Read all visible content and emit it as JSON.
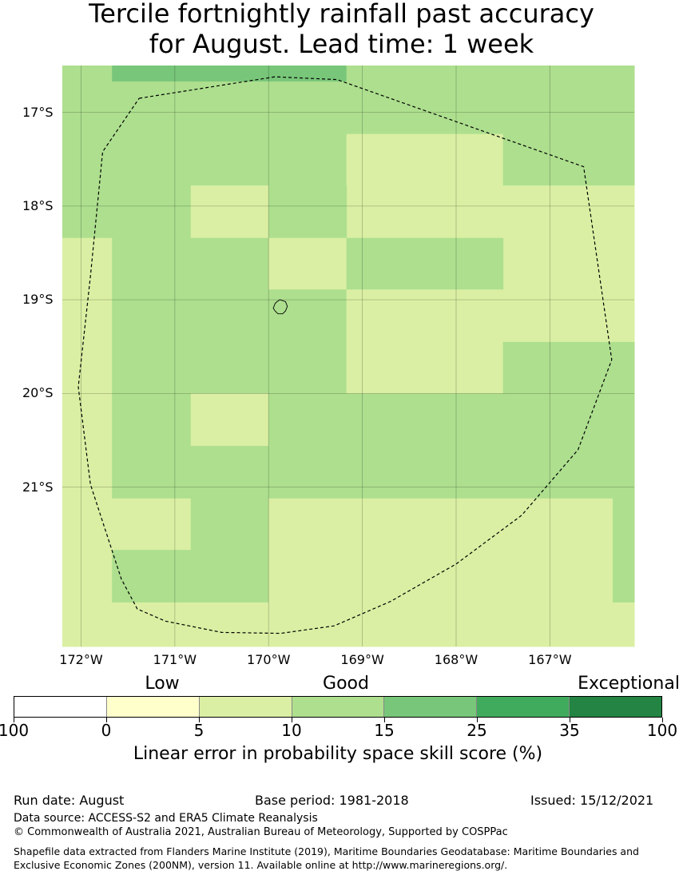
{
  "title": {
    "line1": "Tercile fortnightly rainfall past accuracy",
    "line2": "for August. Lead time: 1 week"
  },
  "map": {
    "lon_range": [
      -172.2,
      -166.1
    ],
    "lat_range": [
      -16.5,
      -22.7
    ],
    "grid_lons": [
      -172,
      -171,
      -170,
      -169,
      -168,
      -167
    ],
    "grid_lats": [
      -17,
      -18,
      -19,
      -20,
      -21
    ],
    "lon_labels": [
      "172°W",
      "171°W",
      "170°W",
      "169°W",
      "168°W",
      "167°W"
    ],
    "lat_labels": [
      "17°S",
      "18°S",
      "19°S",
      "20°S",
      "21°S"
    ],
    "cell_colors": {
      "c10": "#daefa3",
      "c15": "#addf8e",
      "c25": "#78c679"
    },
    "cells": [
      {
        "lon0": -172.2,
        "lon1": -171.67,
        "lat0": -16.5,
        "lat1": -18.34,
        "cls": "c15"
      },
      {
        "lon0": -171.67,
        "lon1": -169.17,
        "lat0": -16.5,
        "lat1": -16.67,
        "cls": "c25"
      },
      {
        "lon0": -169.17,
        "lon1": -166.1,
        "lat0": -16.5,
        "lat1": -17.23,
        "cls": "c15"
      },
      {
        "lon0": -171.67,
        "lon1": -169.17,
        "lat0": -16.67,
        "lat1": -17.78,
        "cls": "c15"
      },
      {
        "lon0": -169.17,
        "lon1": -167.5,
        "lat0": -17.23,
        "lat1": -18.34,
        "cls": "c10"
      },
      {
        "lon0": -167.5,
        "lon1": -166.1,
        "lat0": -17.23,
        "lat1": -17.78,
        "cls": "c15"
      },
      {
        "lon0": -171.67,
        "lon1": -170.83,
        "lat0": -17.78,
        "lat1": -18.34,
        "cls": "c15"
      },
      {
        "lon0": -170.83,
        "lon1": -170.0,
        "lat0": -17.78,
        "lat1": -18.34,
        "cls": "c10"
      },
      {
        "lon0": -170.0,
        "lon1": -169.17,
        "lat0": -17.78,
        "lat1": -18.34,
        "cls": "c15"
      },
      {
        "lon0": -167.5,
        "lon1": -166.1,
        "lat0": -17.78,
        "lat1": -19.45,
        "cls": "c10"
      },
      {
        "lon0": -172.2,
        "lon1": -171.67,
        "lat0": -18.34,
        "lat1": -22.7,
        "cls": "c10"
      },
      {
        "lon0": -171.67,
        "lon1": -170.0,
        "lat0": -18.34,
        "lat1": -20.0,
        "cls": "c15"
      },
      {
        "lon0": -170.0,
        "lon1": -169.17,
        "lat0": -18.34,
        "lat1": -18.89,
        "cls": "c10"
      },
      {
        "lon0": -169.17,
        "lon1": -167.5,
        "lat0": -18.34,
        "lat1": -18.89,
        "cls": "c15"
      },
      {
        "lon0": -170.0,
        "lon1": -169.17,
        "lat0": -18.89,
        "lat1": -20.0,
        "cls": "c15"
      },
      {
        "lon0": -169.17,
        "lon1": -167.5,
        "lat0": -18.89,
        "lat1": -20.0,
        "cls": "c10"
      },
      {
        "lon0": -167.5,
        "lon1": -166.1,
        "lat0": -19.45,
        "lat1": -20.0,
        "cls": "c15"
      },
      {
        "lon0": -171.67,
        "lon1": -170.83,
        "lat0": -20.0,
        "lat1": -21.12,
        "cls": "c15"
      },
      {
        "lon0": -170.83,
        "lon1": -170.0,
        "lat0": -20.0,
        "lat1": -20.56,
        "cls": "c10"
      },
      {
        "lon0": -170.83,
        "lon1": -170.0,
        "lat0": -20.56,
        "lat1": -21.12,
        "cls": "c15"
      },
      {
        "lon0": -170.0,
        "lon1": -166.1,
        "lat0": -20.0,
        "lat1": -21.12,
        "cls": "c15"
      },
      {
        "lon0": -171.67,
        "lon1": -170.83,
        "lat0": -21.12,
        "lat1": -21.67,
        "cls": "c10"
      },
      {
        "lon0": -170.83,
        "lon1": -170.0,
        "lat0": -21.12,
        "lat1": -22.23,
        "cls": "c15"
      },
      {
        "lon0": -170.0,
        "lon1": -166.33,
        "lat0": -21.12,
        "lat1": -22.7,
        "cls": "c10"
      },
      {
        "lon0": -166.33,
        "lon1": -166.1,
        "lat0": -21.12,
        "lat1": -22.23,
        "cls": "c15"
      },
      {
        "lon0": -171.67,
        "lon1": -170.83,
        "lat0": -21.67,
        "lat1": -22.23,
        "cls": "c15"
      },
      {
        "lon0": -171.67,
        "lon1": -170.0,
        "lat0": -22.23,
        "lat1": -22.7,
        "cls": "c10"
      },
      {
        "lon0": -166.33,
        "lon1": -166.1,
        "lat0": -22.23,
        "lat1": -22.7,
        "cls": "c10"
      }
    ],
    "eez_boundary": [
      [
        -171.38,
        -16.85
      ],
      [
        -169.93,
        -16.62
      ],
      [
        -169.27,
        -16.65
      ],
      [
        -166.64,
        -17.58
      ],
      [
        -166.34,
        -19.64
      ],
      [
        -166.7,
        -20.6
      ],
      [
        -167.3,
        -21.3
      ],
      [
        -168.0,
        -21.82
      ],
      [
        -168.7,
        -22.22
      ],
      [
        -169.3,
        -22.48
      ],
      [
        -169.87,
        -22.56
      ],
      [
        -170.5,
        -22.55
      ],
      [
        -171.1,
        -22.43
      ],
      [
        -171.4,
        -22.3
      ],
      [
        -171.57,
        -21.98
      ],
      [
        -171.9,
        -20.97
      ],
      [
        -172.03,
        -19.93
      ],
      [
        -171.9,
        -18.75
      ],
      [
        -171.77,
        -17.42
      ],
      [
        -171.38,
        -16.85
      ]
    ],
    "island": [
      [
        -169.88,
        -19.0
      ],
      [
        -169.82,
        -19.02
      ],
      [
        -169.8,
        -19.07
      ],
      [
        -169.82,
        -19.12
      ],
      [
        -169.85,
        -19.15
      ],
      [
        -169.9,
        -19.15
      ],
      [
        -169.93,
        -19.12
      ],
      [
        -169.95,
        -19.09
      ],
      [
        -169.93,
        -19.04
      ],
      [
        -169.91,
        -19.02
      ],
      [
        -169.88,
        -19.0
      ]
    ]
  },
  "legend": {
    "categories": [
      "Low",
      "Good",
      "Exceptional"
    ],
    "colors": [
      "#ffffff",
      "#ffffcc",
      "#daefa3",
      "#addf8e",
      "#78c679",
      "#41ab5d",
      "#238443"
    ],
    "ticks": [
      "100",
      "0",
      "5",
      "10",
      "15",
      "25",
      "35",
      "100"
    ],
    "label": "Linear error in probability space skill score (%)"
  },
  "footer": {
    "run_date": "Run date: August",
    "base_period": "Base period: 1981-2018",
    "issued": "Issued: 15/12/2021",
    "data_source": "Data source: ACCESS-S2 and ERA5 Climate Reanalysis",
    "copyright": "© Commonwealth of Australia 2021, Australian Bureau of Meteorology, Supported by COSPPac",
    "shapefile": "Shapefile data extracted from Flanders Marine Institute (2019), Maritime Boundaries Geodatabase: Maritime Boundaries and Exclusive Economic Zones (200NM), version 11. Available online at http://www.marineregions.org/."
  }
}
